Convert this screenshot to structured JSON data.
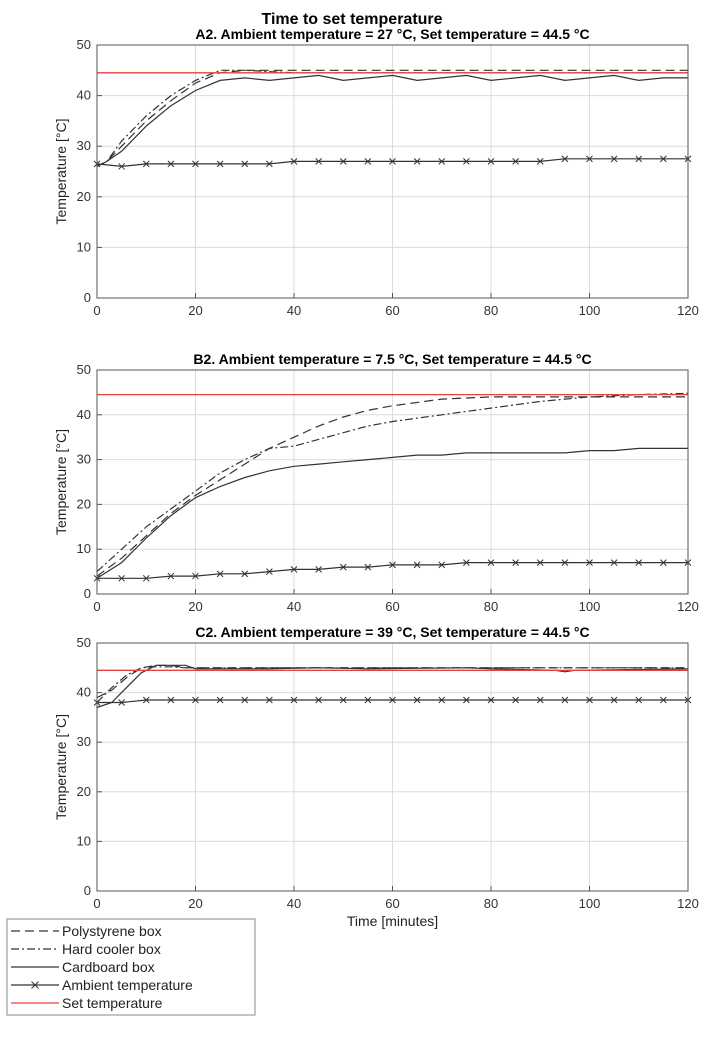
{
  "figure": {
    "title": "Time to set temperature",
    "xlabel": "Time [minutes]"
  },
  "chart_data": [
    {
      "type": "line",
      "title": "A2. Ambient temperature = 27 °C, Set temperature = 44.5 °C",
      "xlabel": "",
      "ylabel": "Temperature [°C]",
      "xlim": [
        0,
        120
      ],
      "ylim": [
        0,
        50
      ],
      "xticks": [
        0,
        20,
        40,
        60,
        80,
        100,
        120
      ],
      "yticks": [
        0,
        10,
        20,
        30,
        40,
        50
      ],
      "grid": true,
      "series": [
        {
          "name": "Polystyrene box",
          "style": "dashed",
          "color": "#333333",
          "x": [
            0,
            2,
            5,
            10,
            15,
            20,
            25,
            30,
            40,
            50,
            60,
            70,
            80,
            90,
            100,
            110,
            120
          ],
          "y": [
            26,
            27,
            30,
            35,
            39,
            42.5,
            44.5,
            45,
            45,
            45,
            45,
            45,
            45,
            45,
            45,
            45,
            45
          ]
        },
        {
          "name": "Hard cooler box",
          "style": "dashdot",
          "color": "#333333",
          "x": [
            0,
            2,
            5,
            10,
            15,
            20,
            25,
            30,
            40,
            50,
            60,
            70,
            80,
            90,
            100,
            110,
            120
          ],
          "y": [
            26,
            27,
            31,
            36,
            40,
            43,
            45,
            45,
            44.5,
            44.5,
            44.5,
            44.5,
            44.5,
            44.5,
            44.5,
            44.5,
            44.5
          ]
        },
        {
          "name": "Cardboard box",
          "style": "solid",
          "color": "#333333",
          "x": [
            0,
            2,
            5,
            10,
            15,
            20,
            25,
            30,
            35,
            40,
            45,
            50,
            55,
            60,
            65,
            70,
            75,
            80,
            85,
            90,
            95,
            100,
            105,
            110,
            115,
            120
          ],
          "y": [
            26,
            27,
            29,
            34,
            38,
            41,
            43,
            43.5,
            43,
            43.5,
            44,
            43,
            43.5,
            44,
            43,
            43.5,
            44,
            43,
            43.5,
            44,
            43,
            43.5,
            44,
            43,
            43.5,
            43.5
          ]
        },
        {
          "name": "Ambient temperature",
          "style": "solid-x",
          "color": "#333333",
          "x": [
            0,
            5,
            10,
            15,
            20,
            25,
            30,
            35,
            40,
            45,
            50,
            55,
            60,
            65,
            70,
            75,
            80,
            85,
            90,
            95,
            100,
            105,
            110,
            115,
            120
          ],
          "y": [
            26.5,
            26,
            26.5,
            26.5,
            26.5,
            26.5,
            26.5,
            26.5,
            27,
            27,
            27,
            27,
            27,
            27,
            27,
            27,
            27,
            27,
            27,
            27.5,
            27.5,
            27.5,
            27.5,
            27.5,
            27.5
          ]
        },
        {
          "name": "Set temperature",
          "style": "solid",
          "color": "#e8403a",
          "x": [
            0,
            120
          ],
          "y": [
            44.5,
            44.5
          ]
        }
      ]
    },
    {
      "type": "line",
      "title": "B2. Ambient temperature = 7.5 °C, Set temperature = 44.5 °C",
      "xlabel": "",
      "ylabel": "Temperature [°C]",
      "xlim": [
        0,
        120
      ],
      "ylim": [
        0,
        50
      ],
      "xticks": [
        0,
        20,
        40,
        60,
        80,
        100,
        120
      ],
      "yticks": [
        0,
        10,
        20,
        30,
        40,
        50
      ],
      "grid": true,
      "series": [
        {
          "name": "Polystyrene box",
          "style": "dashed",
          "color": "#333333",
          "x": [
            0,
            5,
            10,
            15,
            20,
            25,
            30,
            35,
            40,
            45,
            50,
            55,
            60,
            70,
            80,
            90,
            100,
            110,
            120
          ],
          "y": [
            4,
            8,
            13,
            18,
            22,
            25.5,
            29,
            32.5,
            35,
            37.5,
            39.5,
            41,
            42,
            43.5,
            44,
            44,
            44,
            44,
            44
          ]
        },
        {
          "name": "Hard cooler box",
          "style": "dashdot",
          "color": "#333333",
          "x": [
            0,
            5,
            10,
            15,
            20,
            25,
            30,
            35,
            40,
            45,
            50,
            55,
            60,
            70,
            80,
            90,
            100,
            110,
            120
          ],
          "y": [
            5,
            10,
            15,
            19,
            23,
            27,
            30,
            32.5,
            33,
            34.5,
            36,
            37.5,
            38.5,
            40,
            41.5,
            43,
            44,
            44.5,
            44.8
          ]
        },
        {
          "name": "Cardboard box",
          "style": "solid",
          "color": "#333333",
          "x": [
            0,
            5,
            10,
            15,
            20,
            25,
            30,
            35,
            40,
            45,
            50,
            55,
            60,
            65,
            70,
            75,
            80,
            90,
            95,
            100,
            105,
            110,
            115,
            120
          ],
          "y": [
            3.5,
            7,
            12.5,
            17.5,
            21.5,
            24,
            26,
            27.5,
            28.5,
            29,
            29.5,
            30,
            30.5,
            31,
            31,
            31.5,
            31.5,
            31.5,
            31.5,
            32,
            32,
            32.5,
            32.5,
            32.5
          ]
        },
        {
          "name": "Ambient temperature",
          "style": "solid-x",
          "color": "#333333",
          "x": [
            0,
            5,
            10,
            15,
            20,
            25,
            30,
            35,
            40,
            45,
            50,
            55,
            60,
            65,
            70,
            75,
            80,
            85,
            90,
            95,
            100,
            105,
            110,
            115,
            120
          ],
          "y": [
            3.5,
            3.5,
            3.5,
            4,
            4,
            4.5,
            4.5,
            5,
            5.5,
            5.5,
            6,
            6,
            6.5,
            6.5,
            6.5,
            7,
            7,
            7,
            7,
            7,
            7,
            7,
            7,
            7,
            7
          ]
        },
        {
          "name": "Set temperature",
          "style": "solid",
          "color": "#e8403a",
          "x": [
            0,
            120
          ],
          "y": [
            44.5,
            44.5
          ]
        }
      ]
    },
    {
      "type": "line",
      "title": "C2. Ambient temperature = 39 °C, Set temperature = 44.5 °C",
      "xlabel": "Time [minutes]",
      "ylabel": "Temperature [°C]",
      "xlim": [
        0,
        120
      ],
      "ylim": [
        0,
        50
      ],
      "xticks": [
        0,
        20,
        40,
        60,
        80,
        100,
        120
      ],
      "yticks": [
        0,
        10,
        20,
        30,
        40,
        50
      ],
      "grid": true,
      "series": [
        {
          "name": "Polystyrene box",
          "style": "dashed",
          "color": "#333333",
          "x": [
            0,
            3,
            6,
            9,
            12,
            15,
            18,
            20,
            40,
            60,
            80,
            100,
            120
          ],
          "y": [
            39,
            40.5,
            43,
            45,
            45.5,
            45.5,
            45,
            45,
            45,
            45,
            45,
            45,
            45
          ]
        },
        {
          "name": "Hard cooler box",
          "style": "dashdot",
          "color": "#333333",
          "x": [
            0,
            3,
            6,
            9,
            12,
            15,
            18,
            20,
            40,
            60,
            80,
            100,
            120
          ],
          "y": [
            38,
            41,
            43.5,
            45,
            45.2,
            45.2,
            45,
            45,
            45,
            45,
            45,
            45,
            45
          ]
        },
        {
          "name": "Cardboard box",
          "style": "solid",
          "color": "#333333",
          "x": [
            0,
            3,
            6,
            9,
            12,
            15,
            18,
            20,
            35,
            45,
            55,
            75,
            80,
            93,
            95,
            97,
            120
          ],
          "y": [
            37,
            38,
            41,
            44,
            45.5,
            45.5,
            45.5,
            44.8,
            44.8,
            45,
            44.8,
            45,
            44.8,
            44.5,
            44.2,
            44.5,
            44.8
          ]
        },
        {
          "name": "Ambient temperature",
          "style": "solid-x",
          "color": "#333333",
          "x": [
            0,
            5,
            10,
            15,
            20,
            25,
            30,
            35,
            40,
            45,
            50,
            55,
            60,
            65,
            70,
            75,
            80,
            85,
            90,
            95,
            100,
            105,
            110,
            115,
            120
          ],
          "y": [
            38,
            38,
            38.5,
            38.5,
            38.5,
            38.5,
            38.5,
            38.5,
            38.5,
            38.5,
            38.5,
            38.5,
            38.5,
            38.5,
            38.5,
            38.5,
            38.5,
            38.5,
            38.5,
            38.5,
            38.5,
            38.5,
            38.5,
            38.5,
            38.5
          ]
        },
        {
          "name": "Set temperature",
          "style": "solid",
          "color": "#e8403a",
          "x": [
            0,
            120
          ],
          "y": [
            44.5,
            44.5
          ]
        }
      ]
    }
  ],
  "legend": {
    "placement": "bottom-left",
    "entries": [
      {
        "label": "Polystyrene box",
        "style": "dashed",
        "color": "#333333"
      },
      {
        "label": "Hard cooler box",
        "style": "dashdot",
        "color": "#333333"
      },
      {
        "label": "Cardboard box",
        "style": "solid",
        "color": "#333333"
      },
      {
        "label": "Ambient temperature",
        "style": "solid-x",
        "color": "#333333"
      },
      {
        "label": "Set temperature",
        "style": "solid",
        "color": "#e8403a"
      }
    ]
  },
  "colors": {
    "set_line": "#e8403a",
    "series": "#333333",
    "grid": "#dcdcdc",
    "axis": "#555555"
  }
}
